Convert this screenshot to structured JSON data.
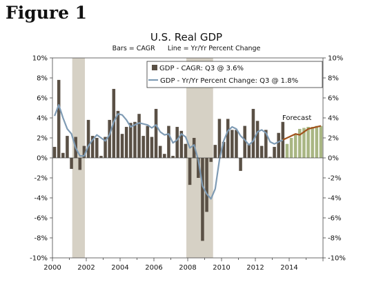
{
  "figure_label": "Figure 1",
  "chart_data": {
    "type": "bar",
    "title": "U.S. Real GDP",
    "subtitle": "Bars = CAGR      Line = Yr/Yr Percent Change",
    "ylim": [
      -10,
      10
    ],
    "y_ticks": [
      "-10%",
      "-8%",
      "-6%",
      "-4%",
      "-2%",
      "0%",
      "2%",
      "4%",
      "6%",
      "8%",
      "10%"
    ],
    "y_ticks_right": [
      "-10%",
      "-8%",
      "-6%",
      "-4%",
      "-2%",
      "0%",
      "2%",
      "4%",
      "6%",
      "8%",
      "10%"
    ],
    "x_ticks": [
      "2000",
      "2002",
      "2004",
      "2006",
      "2008",
      "2010",
      "2012",
      "2014"
    ],
    "xlim": [
      2000,
      2016
    ],
    "grid": false,
    "legend_position": "top-right",
    "recessions": [
      [
        2001.17,
        2001.92
      ],
      [
        2007.92,
        2009.5
      ]
    ],
    "bars": {
      "name": "GDP - CAGR: Q3 @ 3.6%",
      "color": "#5a5045",
      "x": [
        2000.0,
        2000.25,
        2000.5,
        2000.75,
        2001.0,
        2001.25,
        2001.5,
        2001.75,
        2002.0,
        2002.25,
        2002.5,
        2002.75,
        2003.0,
        2003.25,
        2003.5,
        2003.75,
        2004.0,
        2004.25,
        2004.5,
        2004.75,
        2005.0,
        2005.25,
        2005.5,
        2005.75,
        2006.0,
        2006.25,
        2006.5,
        2006.75,
        2007.0,
        2007.25,
        2007.5,
        2007.75,
        2008.0,
        2008.25,
        2008.5,
        2008.75,
        2009.0,
        2009.25,
        2009.5,
        2009.75,
        2010.0,
        2010.25,
        2010.5,
        2010.75,
        2011.0,
        2011.25,
        2011.5,
        2011.75,
        2012.0,
        2012.25,
        2012.5,
        2012.75,
        2013.0,
        2013.25,
        2013.5
      ],
      "values": [
        1.1,
        7.8,
        0.5,
        2.2,
        -1.1,
        2.1,
        -1.2,
        1.2,
        3.8,
        2.2,
        2.0,
        0.2,
        2.1,
        3.8,
        6.9,
        4.7,
        2.4,
        3.1,
        3.5,
        3.6,
        4.4,
        2.2,
        3.2,
        2.1,
        4.9,
        1.2,
        0.4,
        3.2,
        0.2,
        3.1,
        2.7,
        1.4,
        -2.7,
        2.0,
        -2.0,
        -8.3,
        -5.4,
        -0.4,
        1.3,
        3.9,
        1.6,
        3.9,
        2.8,
        2.8,
        -1.3,
        3.2,
        1.4,
        4.9,
        3.7,
        1.2,
        2.8,
        0.1,
        1.1,
        2.5,
        3.6
      ]
    },
    "forecast_bars": {
      "color": "#a9b683",
      "x": [
        2013.75,
        2014.0,
        2014.25,
        2014.5,
        2014.75,
        2015.0,
        2015.25,
        2015.5,
        2015.75
      ],
      "values": [
        1.4,
        2.0,
        2.4,
        2.9,
        3.0,
        3.1,
        3.1,
        3.2,
        3.2
      ]
    },
    "line": {
      "name": "GDP - Yr/Yr Percent Change: Q3 @ 1.8%",
      "color": "#7f9bb4",
      "x": [
        2000.0,
        2000.25,
        2000.5,
        2000.75,
        2001.0,
        2001.25,
        2001.5,
        2001.75,
        2002.0,
        2002.25,
        2002.5,
        2002.75,
        2003.0,
        2003.25,
        2003.5,
        2003.75,
        2004.0,
        2004.25,
        2004.5,
        2004.75,
        2005.0,
        2005.25,
        2005.5,
        2005.75,
        2006.0,
        2006.25,
        2006.5,
        2006.75,
        2007.0,
        2007.25,
        2007.5,
        2007.75,
        2008.0,
        2008.25,
        2008.5,
        2008.75,
        2009.0,
        2009.25,
        2009.5,
        2009.75,
        2010.0,
        2010.25,
        2010.5,
        2010.75,
        2011.0,
        2011.25,
        2011.5,
        2011.75,
        2012.0,
        2012.25,
        2012.5,
        2012.75,
        2013.0,
        2013.25,
        2013.5
      ],
      "values": [
        4.2,
        5.3,
        4.0,
        2.9,
        2.4,
        1.0,
        0.2,
        0.2,
        1.2,
        1.8,
        2.3,
        2.0,
        1.7,
        2.3,
        3.6,
        4.4,
        4.3,
        3.8,
        3.1,
        3.3,
        3.5,
        3.4,
        3.3,
        3.0,
        3.3,
        2.6,
        2.3,
        2.4,
        1.5,
        1.8,
        2.4,
        2.1,
        1.0,
        1.3,
        -0.2,
        -2.8,
        -3.6,
        -4.1,
        -3.1,
        -0.2,
        1.7,
        2.7,
        3.1,
        2.9,
        2.2,
        1.8,
        1.3,
        1.7,
        2.6,
        2.8,
        2.5,
        1.6,
        1.4,
        1.6,
        1.8
      ]
    },
    "forecast_line": {
      "color": "#a0521c",
      "x": [
        2013.5,
        2013.75,
        2014.0,
        2014.25,
        2014.5,
        2014.75,
        2015.0,
        2015.25,
        2015.5,
        2015.75
      ],
      "values": [
        1.8,
        2.0,
        2.2,
        2.4,
        2.3,
        2.6,
        2.9,
        3.0,
        3.1,
        3.2
      ]
    },
    "annotations": [
      "Forecast"
    ]
  }
}
